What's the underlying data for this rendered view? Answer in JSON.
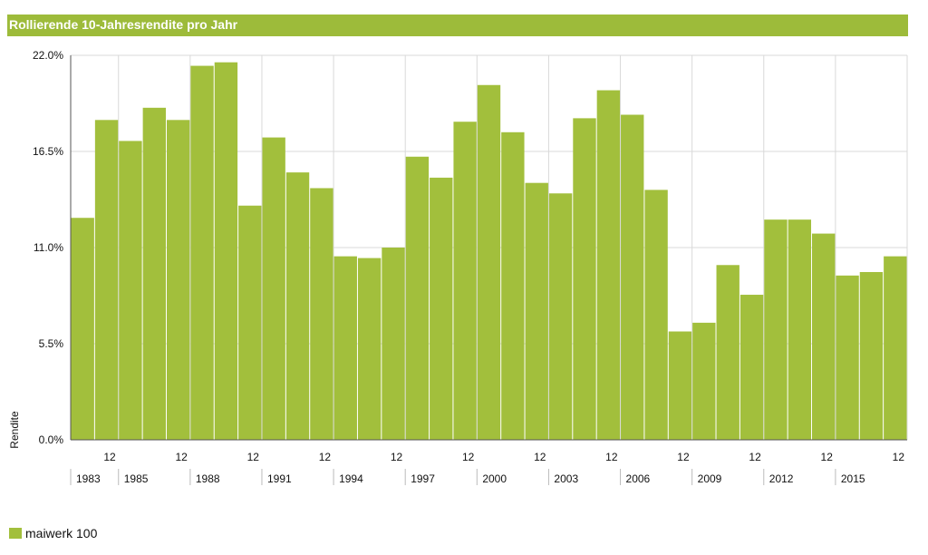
{
  "chart_data": {
    "type": "bar",
    "title": "Rollierende 10-Jahresrendite pro Jahr",
    "ylabel": "Rendite",
    "xlabel": "",
    "ylim": [
      0,
      22
    ],
    "y_ticks": [
      "0.0%",
      "5.5%",
      "11.0%",
      "16.5%",
      "22.0%"
    ],
    "bar_color": "#a2bf3c",
    "grid": true,
    "legend_position": "bottom-left",
    "series": [
      {
        "name": "maiwerk 100",
        "values": [
          12.7,
          18.3,
          17.1,
          19.0,
          18.3,
          21.4,
          21.6,
          13.4,
          17.3,
          15.3,
          14.4,
          10.5,
          10.4,
          11.0,
          16.2,
          15.0,
          18.2,
          20.3,
          17.6,
          14.7,
          14.1,
          18.4,
          20.0,
          18.6,
          14.3,
          6.2,
          6.7,
          10.0,
          8.3,
          12.6,
          12.6,
          11.8,
          9.4,
          9.6,
          10.5
        ]
      }
    ],
    "month_ticks": [
      {
        "bar_index": 1,
        "label": "12"
      },
      {
        "bar_index": 4,
        "label": "12"
      },
      {
        "bar_index": 7,
        "label": "12"
      },
      {
        "bar_index": 10,
        "label": "12"
      },
      {
        "bar_index": 13,
        "label": "12"
      },
      {
        "bar_index": 16,
        "label": "12"
      },
      {
        "bar_index": 19,
        "label": "12"
      },
      {
        "bar_index": 22,
        "label": "12"
      },
      {
        "bar_index": 25,
        "label": "12"
      },
      {
        "bar_index": 28,
        "label": "12"
      },
      {
        "bar_index": 31,
        "label": "12"
      },
      {
        "bar_index": 34,
        "label": "12"
      }
    ],
    "year_ticks": [
      {
        "bar_index": 0,
        "label": "1983"
      },
      {
        "bar_index": 2,
        "label": "1985"
      },
      {
        "bar_index": 5,
        "label": "1988"
      },
      {
        "bar_index": 8,
        "label": "1991"
      },
      {
        "bar_index": 11,
        "label": "1994"
      },
      {
        "bar_index": 14,
        "label": "1997"
      },
      {
        "bar_index": 17,
        "label": "2000"
      },
      {
        "bar_index": 20,
        "label": "2003"
      },
      {
        "bar_index": 23,
        "label": "2006"
      },
      {
        "bar_index": 26,
        "label": "2009"
      },
      {
        "bar_index": 29,
        "label": "2012"
      },
      {
        "bar_index": 32,
        "label": "2015"
      }
    ]
  },
  "legend": {
    "label": "maiwerk 100"
  }
}
